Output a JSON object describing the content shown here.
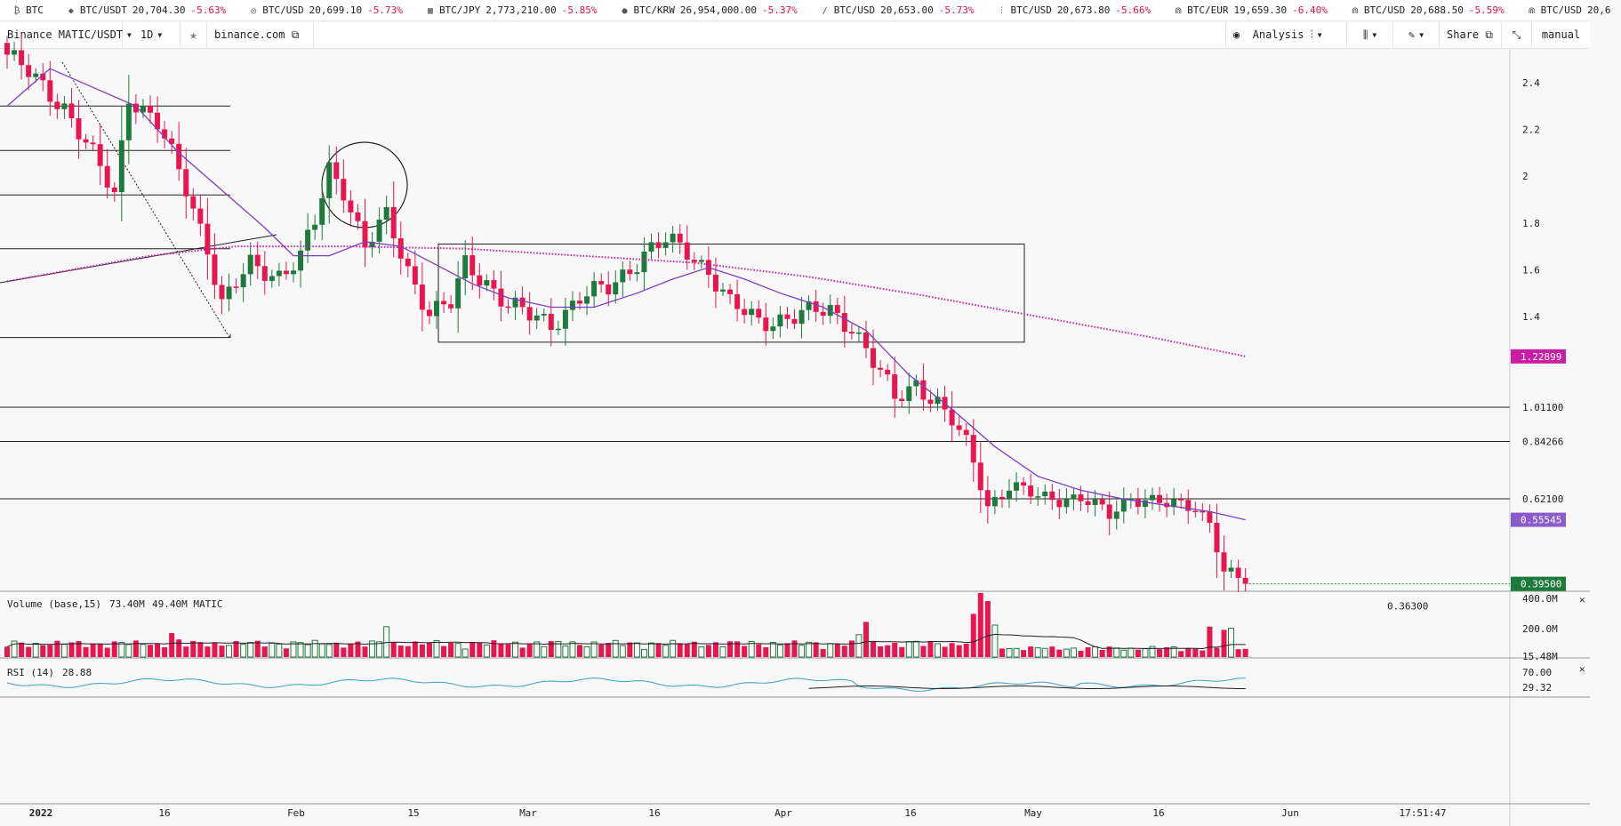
{
  "ticker": [
    {
      "icon": "btc-icon",
      "glyph": "₿",
      "pair": "BTC",
      "price": "",
      "change": ""
    },
    {
      "icon": "diamond-icon",
      "glyph": "◆",
      "pair": "BTC/USDT",
      "price": "20,704.30",
      "change": "-5.63%"
    },
    {
      "icon": "coin-icon",
      "glyph": "◎",
      "pair": "BTC/USD",
      "price": "20,699.10",
      "change": "-5.73%"
    },
    {
      "icon": "grid-icon",
      "glyph": "▦",
      "pair": "BTC/JPY",
      "price": "2,773,210.00",
      "change": "-5.85%"
    },
    {
      "icon": "b-logo-icon",
      "glyph": "●",
      "pair": "BTC/KRW",
      "price": "26,954,000.00",
      "change": "-5.37%"
    },
    {
      "icon": "swoosh-icon",
      "glyph": "∕",
      "pair": "BTC/USD",
      "price": "20,653.00",
      "change": "-5.73%"
    },
    {
      "icon": "bars-icon",
      "glyph": "⫶",
      "pair": "BTC/USD",
      "price": "20,673.80",
      "change": "-5.66%"
    },
    {
      "icon": "arch-icon",
      "glyph": "⋒",
      "pair": "BTC/EUR",
      "price": "19,659.30",
      "change": "-6.40%"
    },
    {
      "icon": "arch-icon",
      "glyph": "⋒",
      "pair": "BTC/USD",
      "price": "20,688.50",
      "change": "-5.59%"
    },
    {
      "icon": "arch-icon",
      "glyph": "⋒",
      "pair": "BTC/USD",
      "price": "20,6",
      "change": ""
    }
  ],
  "toolbar": {
    "symbol": "Binance MATIC/USDT",
    "interval": "1D",
    "source": "binance.com",
    "analysis": "Analysis",
    "share": "Share",
    "mode": "manual"
  },
  "colors": {
    "up": "#1e7a3c",
    "down": "#e8164e",
    "ma_fast": "#7b3fbf",
    "ma_slow": "#c81ea6",
    "rsi": "#3aa0c8",
    "last_price": "#1e7a3c"
  },
  "chart_data": {
    "type": "candlestick",
    "symbol": "MATIC/USDT",
    "exchange": "Binance",
    "interval": "1D",
    "y_ticks": [
      2.4,
      2.2,
      2,
      1.8,
      1.6,
      1.4
    ],
    "price_labels": [
      {
        "value": 1.011,
        "text": "1.01100"
      },
      {
        "value": 0.84266,
        "text": "0.84266"
      },
      {
        "value": 0.621,
        "text": "0.62100"
      }
    ],
    "tags": [
      {
        "name": "ma-slow-tag",
        "value": 1.22899,
        "text": "1.22899",
        "color": "#c81ea6"
      },
      {
        "name": "ma-fast-tag",
        "value": 0.55545,
        "text": "0.55545",
        "color": "#8a5cc9"
      },
      {
        "name": "last-price-tag",
        "value": 0.395,
        "text": "0.39500",
        "color": "#1e7a3c"
      }
    ],
    "low_label": {
      "value": 0.363,
      "text": "0.36300"
    },
    "x_labels": [
      "2022",
      "16",
      "Feb",
      "15",
      "Mar",
      "16",
      "Apr",
      "16",
      "May",
      "16",
      "Jun"
    ],
    "time_label": "17:51:47",
    "horizontal_levels": [
      2.3,
      2.11,
      1.92,
      1.69,
      1.31,
      1.011,
      0.84266,
      0.621
    ],
    "range_box": {
      "high": 1.71,
      "low": 1.29
    },
    "anchors": [
      {
        "i": 0,
        "close": 2.52
      },
      {
        "i": 8,
        "close": 2.3
      },
      {
        "i": 15,
        "close": 1.92
      },
      {
        "i": 17,
        "close": 2.35
      },
      {
        "i": 21,
        "close": 2.22
      },
      {
        "i": 25,
        "close": 1.95
      },
      {
        "i": 28,
        "close": 1.7
      },
      {
        "i": 30,
        "close": 1.45
      },
      {
        "i": 34,
        "close": 1.62
      },
      {
        "i": 38,
        "close": 1.58
      },
      {
        "i": 41,
        "close": 1.65
      },
      {
        "i": 43,
        "close": 1.8
      },
      {
        "i": 45,
        "close": 2.03
      },
      {
        "i": 47,
        "close": 1.95
      },
      {
        "i": 50,
        "close": 1.7
      },
      {
        "i": 53,
        "close": 1.82
      },
      {
        "i": 56,
        "close": 1.6
      },
      {
        "i": 59,
        "close": 1.42
      },
      {
        "i": 62,
        "close": 1.45
      },
      {
        "i": 64,
        "close": 1.62
      },
      {
        "i": 67,
        "close": 1.55
      },
      {
        "i": 70,
        "close": 1.45
      },
      {
        "i": 73,
        "close": 1.4
      },
      {
        "i": 76,
        "close": 1.37
      },
      {
        "i": 80,
        "close": 1.48
      },
      {
        "i": 84,
        "close": 1.52
      },
      {
        "i": 89,
        "close": 1.67
      },
      {
        "i": 92,
        "close": 1.72
      },
      {
        "i": 95,
        "close": 1.68
      },
      {
        "i": 98,
        "close": 1.6
      },
      {
        "i": 101,
        "close": 1.45
      },
      {
        "i": 105,
        "close": 1.38
      },
      {
        "i": 110,
        "close": 1.4
      },
      {
        "i": 115,
        "close": 1.43
      },
      {
        "i": 118,
        "close": 1.36
      },
      {
        "i": 121,
        "close": 1.2
      },
      {
        "i": 124,
        "close": 1.05
      },
      {
        "i": 127,
        "close": 1.12
      },
      {
        "i": 130,
        "close": 1.02
      },
      {
        "i": 134,
        "close": 0.84
      },
      {
        "i": 137,
        "close": 0.6
      },
      {
        "i": 140,
        "close": 0.66
      },
      {
        "i": 144,
        "close": 0.63
      },
      {
        "i": 150,
        "close": 0.62
      },
      {
        "i": 154,
        "close": 0.57
      },
      {
        "i": 157,
        "close": 0.63
      },
      {
        "i": 162,
        "close": 0.6
      },
      {
        "i": 166,
        "close": 0.6
      },
      {
        "i": 168,
        "close": 0.55
      },
      {
        "i": 170,
        "close": 0.42
      },
      {
        "i": 173,
        "close": 0.395
      }
    ],
    "ma_fast_points": [
      {
        "i": 0,
        "v": 2.3
      },
      {
        "i": 6,
        "v": 2.46
      },
      {
        "i": 12,
        "v": 2.38
      },
      {
        "i": 18,
        "v": 2.3
      },
      {
        "i": 24,
        "v": 2.1
      },
      {
        "i": 30,
        "v": 1.94
      },
      {
        "i": 36,
        "v": 1.78
      },
      {
        "i": 40,
        "v": 1.66
      },
      {
        "i": 45,
        "v": 1.66
      },
      {
        "i": 50,
        "v": 1.72
      },
      {
        "i": 55,
        "v": 1.7
      },
      {
        "i": 60,
        "v": 1.62
      },
      {
        "i": 65,
        "v": 1.54
      },
      {
        "i": 70,
        "v": 1.48
      },
      {
        "i": 76,
        "v": 1.44
      },
      {
        "i": 82,
        "v": 1.44
      },
      {
        "i": 88,
        "v": 1.5
      },
      {
        "i": 93,
        "v": 1.56
      },
      {
        "i": 98,
        "v": 1.61
      },
      {
        "i": 103,
        "v": 1.56
      },
      {
        "i": 108,
        "v": 1.5
      },
      {
        "i": 114,
        "v": 1.44
      },
      {
        "i": 120,
        "v": 1.34
      },
      {
        "i": 126,
        "v": 1.15
      },
      {
        "i": 132,
        "v": 1.0
      },
      {
        "i": 138,
        "v": 0.82
      },
      {
        "i": 144,
        "v": 0.7
      },
      {
        "i": 150,
        "v": 0.65
      },
      {
        "i": 156,
        "v": 0.62
      },
      {
        "i": 162,
        "v": 0.6
      },
      {
        "i": 168,
        "v": 0.58
      },
      {
        "i": 173,
        "v": 0.55545
      }
    ],
    "ma_slow_points": [
      {
        "i": 0,
        "v": 1.55
      },
      {
        "i": 20,
        "v": 1.66
      },
      {
        "i": 32,
        "v": 1.7
      },
      {
        "i": 48,
        "v": 1.7
      },
      {
        "i": 64,
        "v": 1.69
      },
      {
        "i": 80,
        "v": 1.66
      },
      {
        "i": 96,
        "v": 1.63
      },
      {
        "i": 112,
        "v": 1.57
      },
      {
        "i": 128,
        "v": 1.49
      },
      {
        "i": 144,
        "v": 1.4
      },
      {
        "i": 160,
        "v": 1.31
      },
      {
        "i": 173,
        "v": 1.22899
      }
    ],
    "volume": {
      "label": "Volume (base,15)",
      "value1": "73.40M",
      "value2": "49.40M MATIC",
      "y_ticks": [
        "400.0M",
        "200.0M",
        "15.48M"
      ],
      "spikes": [
        {
          "i": 23,
          "v": 150
        },
        {
          "i": 24,
          "v": 110
        },
        {
          "i": 53,
          "v": 190
        },
        {
          "i": 120,
          "v": 220
        },
        {
          "i": 135,
          "v": 270
        },
        {
          "i": 136,
          "v": 400
        },
        {
          "i": 137,
          "v": 350
        },
        {
          "i": 138,
          "v": 200
        },
        {
          "i": 119,
          "v": 140
        },
        {
          "i": 168,
          "v": 190
        },
        {
          "i": 170,
          "v": 170
        },
        {
          "i": 171,
          "v": 180
        }
      ]
    },
    "rsi": {
      "label": "RSI (14)",
      "value": "28.88",
      "y_ticks": [
        "70.00",
        "29.32"
      ]
    }
  }
}
